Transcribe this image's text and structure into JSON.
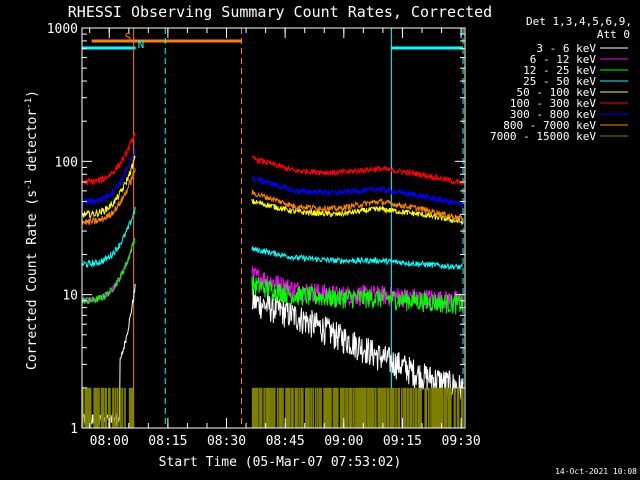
{
  "chart_data": {
    "type": "line",
    "title": "RHESSI Observing Summary Count Rates, Corrected",
    "xlabel": "Start Time (05-Mar-07 07:53:02)",
    "ylabel_main": "Corrected Count Rate (s",
    "ylabel_sup1": "-1",
    "ylabel_mid": " detector",
    "ylabel_sup2": "-1",
    "ylabel_end": ")",
    "yscale": "log",
    "xlim": [
      "07:53:02",
      "09:31:00"
    ],
    "ylim": [
      1,
      1000
    ],
    "x_ticks": [
      "08:00",
      "08:15",
      "08:30",
      "08:45",
      "09:00",
      "09:15",
      "09:30"
    ],
    "y_ticks": [
      "1",
      "10",
      "100",
      "1000"
    ],
    "detectors_line1": "Det 1,3,4,5,6,9,",
    "detectors_line2": "Att 0",
    "timestamp": "14-Oct-2021 10:08",
    "flags": [
      {
        "label": "S",
        "start": "07:55:30",
        "end": "08:33:50",
        "color": "#ff8000",
        "kind": "bar"
      },
      {
        "label": "N",
        "start": "07:53:02",
        "end": "08:06:45",
        "color": "#00ffff",
        "kind": "bar"
      },
      {
        "label": "",
        "start": "09:12:10",
        "end": "09:30:30",
        "color": "#00ffff",
        "kind": "bar"
      }
    ],
    "markers": [
      {
        "time": "08:06:15",
        "color": "#ff8000",
        "style": "solid"
      },
      {
        "time": "08:14:20",
        "color": "#00ffff",
        "style": "dashed"
      },
      {
        "time": "08:33:50",
        "color": "#ff8000",
        "style": "dashed"
      },
      {
        "time": "09:12:10",
        "color": "#00ffff",
        "style": "solid"
      },
      {
        "time": "09:30:30",
        "color": "#00ffff",
        "style": "dashed"
      }
    ],
    "data_gap": [
      "08:06:45",
      "08:36:30"
    ],
    "series": [
      {
        "name": "3 - 6 keV",
        "color": "#ffffff",
        "rise": [
          1.5,
          12
        ],
        "second": [
          9,
          7,
          5,
          3.5,
          2.5,
          2
        ]
      },
      {
        "name": "6 - 12 keV",
        "color": "#ff00ff",
        "rise": [
          9,
          28
        ],
        "second": [
          14,
          11,
          10,
          10,
          9.5,
          9
        ]
      },
      {
        "name": "12 - 25 keV",
        "color": "#00ff00",
        "rise": [
          9,
          28
        ],
        "second": [
          12,
          10,
          9.5,
          9.5,
          9,
          8.5
        ]
      },
      {
        "name": "25 - 50 keV",
        "color": "#00ffff",
        "rise": [
          17,
          45
        ],
        "second": [
          22,
          19,
          18,
          18,
          17,
          16
        ]
      },
      {
        "name": "50 - 100 keV",
        "color": "#ffff00",
        "rise": [
          40,
          110
        ],
        "second": [
          50,
          42,
          40,
          44,
          40,
          35
        ]
      },
      {
        "name": "100 - 300 keV",
        "color": "#ff0000",
        "rise": [
          70,
          170
        ],
        "second": [
          105,
          85,
          82,
          88,
          80,
          68
        ]
      },
      {
        "name": "300 - 800 keV",
        "color": "#0000ff",
        "rise": [
          50,
          125
        ],
        "second": [
          75,
          60,
          58,
          62,
          55,
          47
        ]
      },
      {
        "name": "800 - 7000 keV",
        "color": "#ff8000",
        "rise": [
          35,
          90
        ],
        "second": [
          58,
          46,
          44,
          50,
          44,
          37
        ]
      },
      {
        "name": "7000 - 15000 keV",
        "color": "#808000",
        "rise": [
          1.6,
          2
        ],
        "second": [
          1.6,
          1.6,
          1.6,
          1.6,
          1.6,
          1.4
        ]
      }
    ]
  }
}
